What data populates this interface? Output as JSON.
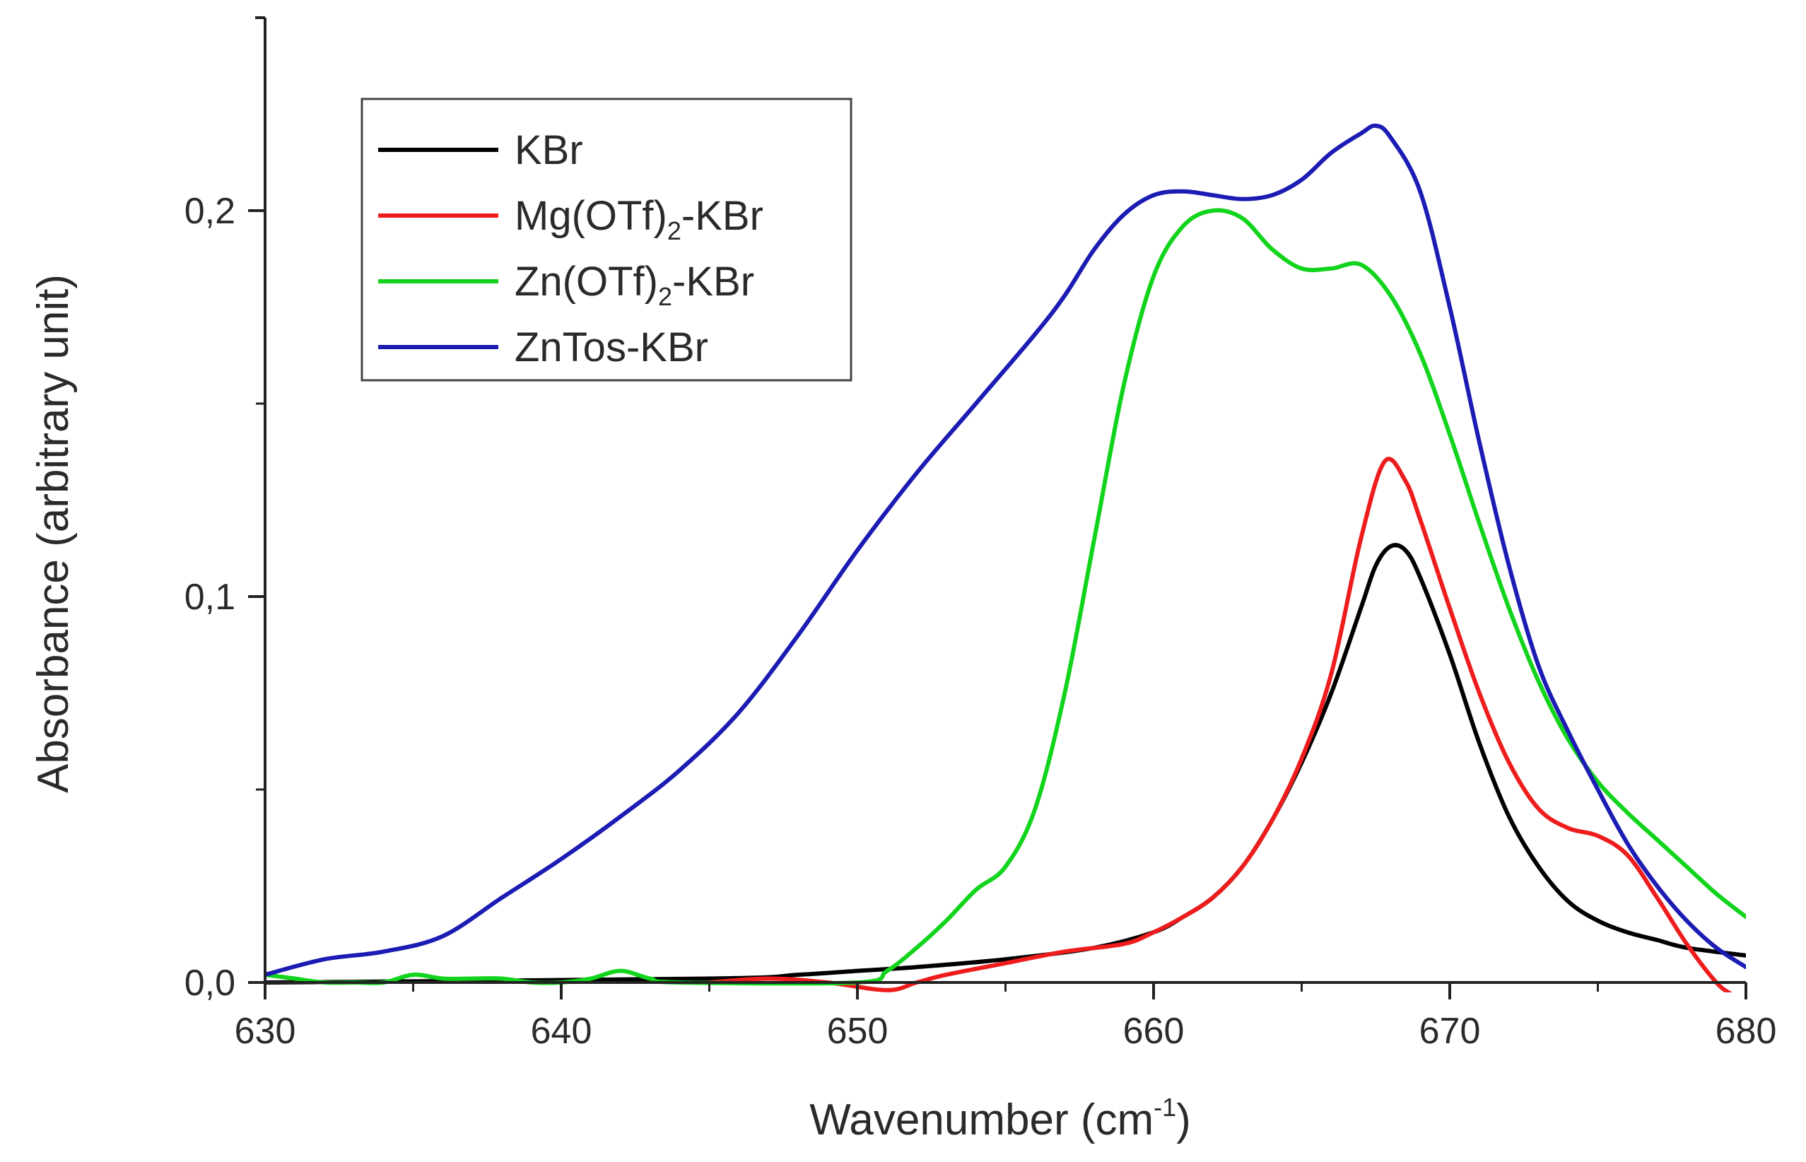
{
  "chart_data": {
    "type": "line",
    "xlabel": "Wavenumber (cm",
    "xlabel_sup": "-1",
    "xlabel_end": ")",
    "ylabel": "Absorbance (arbitrary unit)",
    "xlim": [
      630,
      680
    ],
    "ylim": [
      0,
      0.25
    ],
    "x_ticks": [
      {
        "value": 630,
        "label": "630"
      },
      {
        "value": 640,
        "label": "640"
      },
      {
        "value": 650,
        "label": "650"
      },
      {
        "value": 660,
        "label": "660"
      },
      {
        "value": 670,
        "label": "670"
      },
      {
        "value": 680,
        "label": "680"
      }
    ],
    "y_ticks": [
      {
        "value": 0.0,
        "label": "0,0"
      },
      {
        "value": 0.1,
        "label": "0,1"
      },
      {
        "value": 0.2,
        "label": "0,2"
      }
    ],
    "y_minor_ticks": [
      0.05,
      0.15
    ],
    "x_minor_ticks": [
      635,
      645,
      655,
      665,
      675
    ],
    "legend_position": "top-left",
    "series": [
      {
        "name": "KBr",
        "legend": {
          "main": "KBr",
          "sub": "",
          "rest": ""
        },
        "color": "#000000",
        "points": [
          [
            630,
            0
          ],
          [
            645,
            0.001
          ],
          [
            648,
            0.002
          ],
          [
            650,
            0.003
          ],
          [
            652,
            0.004
          ],
          [
            655,
            0.006
          ],
          [
            658,
            0.009
          ],
          [
            660,
            0.013
          ],
          [
            661,
            0.017
          ],
          [
            662,
            0.022
          ],
          [
            663,
            0.03
          ],
          [
            664,
            0.042
          ],
          [
            665,
            0.057
          ],
          [
            666,
            0.075
          ],
          [
            667,
            0.097
          ],
          [
            667.5,
            0.108
          ],
          [
            668,
            0.113
          ],
          [
            668.5,
            0.112
          ],
          [
            669,
            0.105
          ],
          [
            670,
            0.085
          ],
          [
            671,
            0.062
          ],
          [
            672,
            0.043
          ],
          [
            673,
            0.03
          ],
          [
            674,
            0.021
          ],
          [
            675,
            0.016
          ],
          [
            676,
            0.013
          ],
          [
            677,
            0.011
          ],
          [
            678,
            0.009
          ],
          [
            680,
            0.007
          ]
        ]
      },
      {
        "name": "Mg(OTf)2-KBr",
        "legend": {
          "main": "Mg(OTf)",
          "sub": "2",
          "rest": "-KBr"
        },
        "color": "#ee1c1c",
        "points": [
          [
            645,
            0
          ],
          [
            647,
            0.001
          ],
          [
            649,
            0.0
          ],
          [
            651,
            -0.002
          ],
          [
            652,
            0.0
          ],
          [
            653,
            0.002
          ],
          [
            655,
            0.005
          ],
          [
            657,
            0.008
          ],
          [
            659,
            0.01
          ],
          [
            660,
            0.013
          ],
          [
            661,
            0.017
          ],
          [
            662,
            0.022
          ],
          [
            663,
            0.03
          ],
          [
            664,
            0.042
          ],
          [
            665,
            0.058
          ],
          [
            666,
            0.08
          ],
          [
            667,
            0.115
          ],
          [
            667.8,
            0.135
          ],
          [
            668.5,
            0.13
          ],
          [
            669,
            0.12
          ],
          [
            670,
            0.097
          ],
          [
            671,
            0.075
          ],
          [
            672,
            0.057
          ],
          [
            673,
            0.045
          ],
          [
            674,
            0.04
          ],
          [
            675,
            0.038
          ],
          [
            676,
            0.033
          ],
          [
            677,
            0.022
          ],
          [
            678,
            0.01
          ],
          [
            679,
            0.0
          ],
          [
            679.5,
            -0.003
          ]
        ]
      },
      {
        "name": "Zn(OTf)2-KBr",
        "legend": {
          "main": "Zn(OTf)",
          "sub": "2",
          "rest": "-KBr"
        },
        "color": "#12d41c",
        "points": [
          [
            630,
            0.002
          ],
          [
            631,
            0.001
          ],
          [
            632,
            0
          ],
          [
            633,
            0
          ],
          [
            634,
            0
          ],
          [
            635,
            0.002
          ],
          [
            636,
            0.001
          ],
          [
            637,
            0.001
          ],
          [
            638,
            0.001
          ],
          [
            639,
            0
          ],
          [
            640,
            0
          ],
          [
            641,
            0.001
          ],
          [
            642,
            0.003
          ],
          [
            643,
            0.001
          ],
          [
            644,
            0
          ],
          [
            650,
            0
          ],
          [
            651,
            0.003
          ],
          [
            652,
            0.009
          ],
          [
            653,
            0.016
          ],
          [
            654,
            0.024
          ],
          [
            655,
            0.03
          ],
          [
            656,
            0.045
          ],
          [
            657,
            0.075
          ],
          [
            658,
            0.115
          ],
          [
            659,
            0.155
          ],
          [
            660,
            0.183
          ],
          [
            661,
            0.196
          ],
          [
            662,
            0.2
          ],
          [
            663,
            0.198
          ],
          [
            664,
            0.19
          ],
          [
            665,
            0.185
          ],
          [
            666,
            0.185
          ],
          [
            667,
            0.186
          ],
          [
            668,
            0.178
          ],
          [
            669,
            0.163
          ],
          [
            670,
            0.142
          ],
          [
            671,
            0.119
          ],
          [
            672,
            0.097
          ],
          [
            673,
            0.078
          ],
          [
            674,
            0.063
          ],
          [
            675,
            0.052
          ],
          [
            676,
            0.044
          ],
          [
            677,
            0.037
          ],
          [
            678,
            0.03
          ],
          [
            679,
            0.023
          ],
          [
            680,
            0.017
          ]
        ]
      },
      {
        "name": "ZnTos-KBr",
        "legend": {
          "main": "ZnTos-KBr",
          "sub": "",
          "rest": ""
        },
        "color": "#1c1cb4",
        "points": [
          [
            630,
            0.002
          ],
          [
            632,
            0.006
          ],
          [
            634,
            0.008
          ],
          [
            636,
            0.012
          ],
          [
            638,
            0.022
          ],
          [
            640,
            0.032
          ],
          [
            642,
            0.043
          ],
          [
            644,
            0.055
          ],
          [
            646,
            0.07
          ],
          [
            648,
            0.09
          ],
          [
            650,
            0.112
          ],
          [
            652,
            0.132
          ],
          [
            654,
            0.15
          ],
          [
            656,
            0.168
          ],
          [
            657,
            0.178
          ],
          [
            658,
            0.19
          ],
          [
            659,
            0.199
          ],
          [
            660,
            0.204
          ],
          [
            661,
            0.205
          ],
          [
            662,
            0.204
          ],
          [
            663,
            0.203
          ],
          [
            664,
            0.204
          ],
          [
            665,
            0.208
          ],
          [
            666,
            0.215
          ],
          [
            667,
            0.22
          ],
          [
            667.5,
            0.222
          ],
          [
            668,
            0.219
          ],
          [
            669,
            0.205
          ],
          [
            670,
            0.175
          ],
          [
            671,
            0.14
          ],
          [
            672,
            0.108
          ],
          [
            673,
            0.082
          ],
          [
            674,
            0.065
          ],
          [
            675,
            0.05
          ],
          [
            676,
            0.036
          ],
          [
            677,
            0.025
          ],
          [
            678,
            0.016
          ],
          [
            679,
            0.009
          ],
          [
            680,
            0.004
          ]
        ]
      }
    ]
  }
}
